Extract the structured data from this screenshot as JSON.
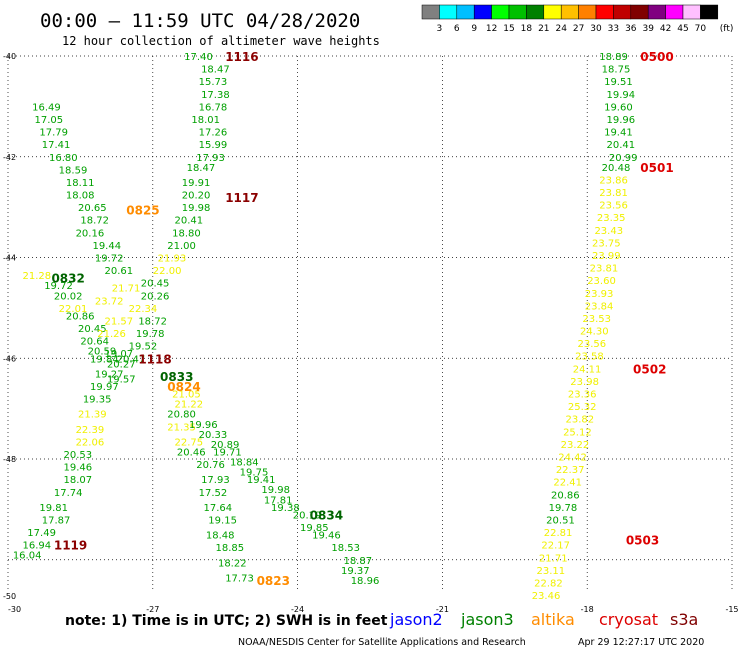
{
  "header": {
    "title": "00:00 – 11:59 UTC 04/28/2020",
    "subtitle": "12 hour collection of altimeter wave heights"
  },
  "scale": {
    "unit": "(ft)",
    "colors": [
      "#808080",
      "#00ffff",
      "#00bfff",
      "#0000ff",
      "#00ff00",
      "#00c000",
      "#008000",
      "#ffff00",
      "#ffc000",
      "#ff8000",
      "#ff0000",
      "#c00000",
      "#800000",
      "#800080",
      "#ff00ff",
      "#ffc0ff",
      "#000000"
    ],
    "labels": [
      "3",
      "6",
      "9",
      "12",
      "15",
      "18",
      "21",
      "24",
      "27",
      "30",
      "33",
      "36",
      "39",
      "42",
      "45",
      "70"
    ]
  },
  "axes": {
    "lat_labels": [
      "-40",
      "-42",
      "-44",
      "-46",
      "-48",
      "-50"
    ],
    "lat_values": [
      -40,
      -42,
      -44,
      -46,
      -48,
      -50
    ],
    "lon_labels": [
      "-30",
      "-27",
      "-24",
      "-21",
      "-18",
      "-15"
    ],
    "lon_values": [
      -30,
      -27,
      -24,
      -21,
      -18,
      -15
    ]
  },
  "map_data": {
    "tracks": [
      {
        "name": "track-a",
        "values": [
          "17.40",
          "18.47",
          "15.73",
          "17.38",
          "16.78",
          "18.01",
          "17.26",
          "15.99",
          "17.93",
          "18.47",
          "19.91",
          "20.20",
          "19.98",
          "20.41",
          "18.80",
          "21.00",
          "21.93",
          "22.00",
          "20.45",
          "20.26",
          "22.34",
          "18.72",
          "19.78",
          "19.52",
          "20.47",
          "19.07",
          "20.27",
          "19.27",
          "19.57",
          "19.97",
          "19.35",
          "21.39",
          "22.39",
          "22.06",
          "20.53",
          "19.46",
          "18.07",
          "17.74",
          "19.81",
          "17.87",
          "17.49",
          "16.94",
          "16.04"
        ],
        "colors": [
          "g",
          "g",
          "g",
          "g",
          "g",
          "g",
          "g",
          "g",
          "g",
          "g",
          "g",
          "g",
          "g",
          "g",
          "g",
          "g",
          "y",
          "y",
          "g",
          "g",
          "y",
          "g",
          "g",
          "g",
          "g",
          "g",
          "g",
          "g",
          "g",
          "g",
          "g",
          "y",
          "y",
          "y",
          "g",
          "g",
          "g",
          "g",
          "g",
          "g",
          "g",
          "g",
          "g"
        ],
        "lat": [
          -40.0,
          -40.25,
          -40.5,
          -40.75,
          -41.0,
          -41.25,
          -41.5,
          -41.75,
          -42.0,
          -42.2,
          -42.5,
          -42.75,
          -43.0,
          -43.25,
          -43.5,
          -43.75,
          -44.0,
          -44.25,
          -44.5,
          -44.75,
          -45.0,
          -45.25,
          -45.5,
          -45.75,
          -46.0,
          -45.9,
          -46.1,
          -46.3,
          -46.4,
          -46.55,
          -46.8,
          -47.1,
          -47.4,
          -47.65,
          -47.9,
          -48.15,
          -48.4,
          -48.65,
          -48.95,
          -49.2,
          -49.45,
          -49.7,
          -49.9
        ],
        "lon": [
          -26.35,
          -26.0,
          -26.05,
          -26.0,
          -26.05,
          -26.2,
          -26.05,
          -26.05,
          -26.1,
          -26.3,
          -26.4,
          -26.4,
          -26.4,
          -26.55,
          -26.6,
          -26.7,
          -26.9,
          -27.0,
          -27.25,
          -27.25,
          -27.5,
          -27.3,
          -27.35,
          -27.5,
          -27.75,
          -28.0,
          -27.95,
          -28.2,
          -27.95,
          -28.3,
          -28.45,
          -28.55,
          -28.6,
          -28.6,
          -28.85,
          -28.85,
          -28.85,
          -29.05,
          -29.35,
          -29.3,
          -29.6,
          -29.7,
          -29.9
        ]
      },
      {
        "name": "track-b",
        "values": [
          "16.49",
          "17.05",
          "17.79",
          "17.41",
          "16.80",
          "18.59",
          "18.11",
          "18.08",
          "20.65",
          "18.72",
          "20.16",
          "19.44",
          "19.72",
          "20.61",
          "21.28",
          "19.72",
          "20.02",
          "22.01",
          "23.72",
          "21.71",
          "21.57",
          "20.86",
          "20.45",
          "21.26",
          "20.64",
          "20.59",
          "19.84"
        ],
        "colors": [
          "g",
          "g",
          "g",
          "g",
          "g",
          "g",
          "g",
          "g",
          "g",
          "g",
          "g",
          "g",
          "g",
          "g",
          "y",
          "g",
          "g",
          "y",
          "y",
          "y",
          "y",
          "g",
          "g",
          "y",
          "g",
          "g",
          "g"
        ],
        "lat": [
          -41.0,
          -41.25,
          -41.5,
          -41.75,
          -42.0,
          -42.25,
          -42.5,
          -42.75,
          -43.0,
          -43.25,
          -43.5,
          -43.75,
          -44.0,
          -44.25,
          -44.35,
          -44.55,
          -44.75,
          -45.0,
          -44.85,
          -44.6,
          -45.25,
          -45.15,
          -45.4,
          -45.5,
          -45.65,
          -45.85,
          -46.0
        ],
        "lon": [
          -29.5,
          -29.45,
          -29.35,
          -29.3,
          -29.15,
          -28.95,
          -28.8,
          -28.8,
          -28.55,
          -28.5,
          -28.6,
          -28.25,
          -28.2,
          -28.0,
          -29.7,
          -29.25,
          -29.05,
          -28.95,
          -28.2,
          -27.85,
          -28.0,
          -28.8,
          -28.55,
          -28.15,
          -28.5,
          -28.35,
          -28.3
        ]
      },
      {
        "name": "track-c",
        "values": [
          "21.05",
          "21.22",
          "20.80",
          "21.35",
          "19.96",
          "20.33",
          "22.75",
          "20.89",
          "20.46",
          "19.71",
          "20.76",
          "18.84",
          "19.75",
          "17.93",
          "19.41",
          "19.98",
          "17.52",
          "17.81",
          "19.38",
          "17.64",
          "20.19",
          "19.15",
          "19.85",
          "19.46",
          "18.48",
          "18.53",
          "18.85",
          "18.87",
          "19.37",
          "18.22",
          "18.96",
          "17.73"
        ],
        "colors": [
          "y",
          "y",
          "g",
          "y",
          "g",
          "g",
          "y",
          "g",
          "g",
          "g",
          "g",
          "g",
          "g",
          "g",
          "g",
          "g",
          "g",
          "g",
          "g",
          "g",
          "g",
          "g",
          "g",
          "g",
          "g",
          "g",
          "g",
          "g",
          "g",
          "g",
          "g",
          "g"
        ],
        "lat": [
          -46.7,
          -46.9,
          -47.1,
          -47.35,
          -47.3,
          -47.5,
          -47.65,
          -47.7,
          -47.85,
          -47.85,
          -48.1,
          -48.05,
          -48.25,
          -48.4,
          -48.4,
          -48.6,
          -48.65,
          -48.8,
          -48.95,
          -48.95,
          -49.1,
          -49.2,
          -49.35,
          -49.5,
          -49.5,
          -49.75,
          -49.75,
          -50.0,
          -50.2,
          -50.05,
          -50.4,
          -50.35
        ],
        "lon": [
          -26.6,
          -26.55,
          -26.7,
          -26.7,
          -26.25,
          -26.05,
          -26.55,
          -25.8,
          -26.5,
          -25.75,
          -26.1,
          -25.4,
          -25.2,
          -26.0,
          -25.05,
          -24.75,
          -26.05,
          -24.7,
          -24.55,
          -25.95,
          -24.1,
          -25.85,
          -23.95,
          -23.7,
          -25.9,
          -23.3,
          -25.7,
          -23.05,
          -23.1,
          -25.65,
          -22.9,
          -25.5
        ]
      },
      {
        "name": "track-d",
        "values": [
          "18.89",
          "18.75",
          "19.51",
          "19.94",
          "19.60",
          "19.96",
          "19.41",
          "20.41",
          "20.99",
          "20.48",
          "23.86",
          "23.81",
          "23.56",
          "23.35",
          "23.43",
          "23.75",
          "23.99",
          "23.81",
          "23.60",
          "23.93",
          "23.84",
          "23.53",
          "24.30",
          "23.56",
          "23.58",
          "24.11",
          "23.98",
          "23.36",
          "25.32",
          "23.82",
          "25.12",
          "23.22",
          "24.42",
          "22.37",
          "22.41",
          "20.86",
          "19.78",
          "20.51",
          "22.81",
          "22.17",
          "21.71",
          "23.11",
          "22.82",
          "23.46"
        ],
        "colors": [
          "g",
          "g",
          "g",
          "g",
          "g",
          "g",
          "g",
          "g",
          "g",
          "g",
          "y",
          "y",
          "y",
          "y",
          "y",
          "y",
          "y",
          "y",
          "y",
          "y",
          "y",
          "y",
          "y",
          "y",
          "y",
          "y",
          "y",
          "y",
          "y",
          "y",
          "y",
          "y",
          "y",
          "y",
          "y",
          "g",
          "g",
          "g",
          "y",
          "y",
          "y",
          "y",
          "y",
          "y"
        ],
        "lat": [
          -40.0,
          -40.25,
          -40.5,
          -40.75,
          -41.0,
          -41.25,
          -41.5,
          -41.75,
          -42.0,
          -42.2,
          -42.45,
          -42.7,
          -42.95,
          -43.2,
          -43.45,
          -43.7,
          -43.95,
          -44.2,
          -44.45,
          -44.7,
          -44.95,
          -45.2,
          -45.45,
          -45.7,
          -45.95,
          -46.2,
          -46.45,
          -46.7,
          -46.95,
          -47.2,
          -47.45,
          -47.7,
          -47.95,
          -48.2,
          -48.45,
          -48.7,
          -48.95,
          -49.2,
          -49.45,
          -49.7,
          -49.95,
          -50.2,
          -50.45,
          -50.7
        ],
        "lon": [
          -17.75,
          -17.7,
          -17.65,
          -17.6,
          -17.65,
          -17.6,
          -17.65,
          -17.6,
          -17.55,
          -17.7,
          -17.75,
          -17.75,
          -17.75,
          -17.8,
          -17.85,
          -17.9,
          -17.9,
          -17.95,
          -18.0,
          -18.05,
          -18.05,
          -18.1,
          -18.15,
          -18.2,
          -18.25,
          -18.3,
          -18.35,
          -18.4,
          -18.4,
          -18.45,
          -18.5,
          -18.55,
          -18.6,
          -18.65,
          -18.7,
          -18.75,
          -18.8,
          -18.85,
          -18.9,
          -18.95,
          -19.0,
          -19.05,
          -19.1,
          -19.15
        ]
      }
    ],
    "time_labels": [
      {
        "text": "1116",
        "color": "maroon",
        "lat": -40.0,
        "lon": -25.5
      },
      {
        "text": "1117",
        "color": "maroon",
        "lat": -42.8,
        "lon": -25.5
      },
      {
        "text": "0825",
        "color": "orange",
        "lat": -43.05,
        "lon": -27.55
      },
      {
        "text": "0832",
        "color": "darkgreen",
        "lat": -44.4,
        "lon": -29.1
      },
      {
        "text": "1118",
        "color": "maroon",
        "lat": -46.0,
        "lon": -27.3
      },
      {
        "text": "0833",
        "color": "darkgreen",
        "lat": -46.35,
        "lon": -26.85
      },
      {
        "text": "0824",
        "color": "orange",
        "lat": -46.55,
        "lon": -26.7
      },
      {
        "text": "0834",
        "color": "darkgreen",
        "lat": -49.1,
        "lon": -23.75
      },
      {
        "text": "1119",
        "color": "maroon",
        "lat": -49.7,
        "lon": -29.05
      },
      {
        "text": "0823",
        "color": "orange",
        "lat": -50.4,
        "lon": -24.85
      },
      {
        "text": "0500",
        "color": "red",
        "lat": -40.0,
        "lon": -16.9
      },
      {
        "text": "0501",
        "color": "red",
        "lat": -42.2,
        "lon": -16.9
      },
      {
        "text": "0502",
        "color": "red",
        "lat": -46.2,
        "lon": -17.05
      },
      {
        "text": "0503",
        "color": "red",
        "lat": -49.6,
        "lon": -17.2
      }
    ]
  },
  "footer": {
    "note": "note: 1) Time is in UTC; 2) SWH is in feet",
    "satellites": [
      {
        "name": "jason2",
        "color": "#0000ff"
      },
      {
        "name": "jason3",
        "color": "#008000"
      },
      {
        "name": "altika",
        "color": "#ff8c00"
      },
      {
        "name": "cryosat",
        "color": "#dd0000"
      },
      {
        "name": "s3a",
        "color": "#800000"
      }
    ],
    "credit": "NOAA/NESDIS Center for Satellite Applications and Research",
    "timestamp": "Apr 29 12:27:17 UTC 2020"
  }
}
